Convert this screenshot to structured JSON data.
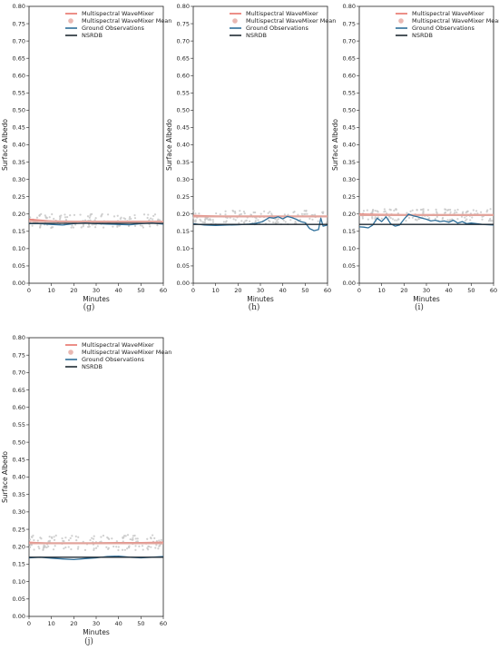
{
  "legend": [
    {
      "label": "Multispectral WaveMixer",
      "kind": "line",
      "color": "#e8736b"
    },
    {
      "label": "Multispectral WaveMixer Mean",
      "kind": "dot",
      "color": "#e9b8b2"
    },
    {
      "label": "Ground Observations",
      "kind": "line",
      "color": "#2e6f9a"
    },
    {
      "label": "NSRDB",
      "kind": "line",
      "color": "#1f2a33"
    }
  ],
  "chart_data": [
    {
      "type": "line",
      "caption": "(g)",
      "xlabel": "Minutes",
      "ylabel": "Surface Albedo",
      "xlim": [
        0,
        60
      ],
      "ylim": [
        0,
        0.8
      ],
      "xticks": [
        0,
        10,
        20,
        30,
        40,
        50,
        60
      ],
      "yticks": [
        "0.00",
        "0.05",
        "0.10",
        "0.15",
        "0.20",
        "0.25",
        "0.30",
        "0.35",
        "0.40",
        "0.45",
        "0.50",
        "0.55",
        "0.60",
        "0.65",
        "0.70",
        "0.75",
        "0.80"
      ],
      "scatter_band": [
        0.16,
        0.2
      ],
      "series": [
        {
          "name": "Multispectral WaveMixer",
          "x": [
            0,
            10,
            20,
            30,
            40,
            50,
            60
          ],
          "y": [
            0.185,
            0.18,
            0.178,
            0.177,
            0.177,
            0.177,
            0.178
          ]
        },
        {
          "name": "Multispectral WaveMixer Mean",
          "x": [
            0,
            10,
            20,
            30,
            40,
            50,
            60
          ],
          "y": [
            0.18,
            0.179,
            0.178,
            0.178,
            0.178,
            0.178,
            0.178
          ]
        },
        {
          "name": "Ground Observations",
          "x": [
            0,
            5,
            10,
            15,
            20,
            25,
            30,
            35,
            40,
            45,
            50,
            55,
            60
          ],
          "y": [
            0.172,
            0.172,
            0.17,
            0.168,
            0.172,
            0.174,
            0.172,
            0.171,
            0.17,
            0.169,
            0.172,
            0.174,
            0.171
          ]
        },
        {
          "name": "NSRDB",
          "x": [
            0,
            60
          ],
          "y": [
            0.173,
            0.173
          ]
        }
      ]
    },
    {
      "type": "line",
      "caption": "(h)",
      "xlabel": "Minutes",
      "ylabel": "Surface Albedo",
      "xlim": [
        0,
        60
      ],
      "ylim": [
        0,
        0.8
      ],
      "xticks": [
        0,
        10,
        20,
        30,
        40,
        50,
        60
      ],
      "yticks": [
        "0.00",
        "0.05",
        "0.10",
        "0.15",
        "0.20",
        "0.25",
        "0.30",
        "0.35",
        "0.40",
        "0.45",
        "0.50",
        "0.55",
        "0.60",
        "0.65",
        "0.70",
        "0.75",
        "0.80"
      ],
      "scatter_band": [
        0.17,
        0.21
      ],
      "series": [
        {
          "name": "Multispectral WaveMixer",
          "x": [
            0,
            10,
            20,
            30,
            40,
            50,
            60
          ],
          "y": [
            0.196,
            0.194,
            0.193,
            0.193,
            0.193,
            0.193,
            0.193
          ]
        },
        {
          "name": "Multispectral WaveMixer Mean",
          "x": [
            0,
            10,
            20,
            30,
            40,
            50,
            60
          ],
          "y": [
            0.193,
            0.193,
            0.193,
            0.193,
            0.193,
            0.193,
            0.193
          ]
        },
        {
          "name": "Ground Observations",
          "x": [
            0,
            5,
            10,
            15,
            20,
            25,
            28,
            31,
            34,
            36,
            38,
            40,
            42,
            44,
            46,
            48,
            50,
            52,
            54,
            56,
            57,
            58,
            60
          ],
          "y": [
            0.172,
            0.168,
            0.167,
            0.168,
            0.169,
            0.171,
            0.173,
            0.178,
            0.19,
            0.188,
            0.192,
            0.186,
            0.193,
            0.19,
            0.185,
            0.178,
            0.175,
            0.158,
            0.152,
            0.155,
            0.188,
            0.165,
            0.168
          ]
        },
        {
          "name": "NSRDB",
          "x": [
            0,
            60
          ],
          "y": [
            0.17,
            0.17
          ]
        }
      ]
    },
    {
      "type": "line",
      "caption": "(i)",
      "xlabel": "Minutes",
      "ylabel": "Surface Albedo",
      "xlim": [
        0,
        60
      ],
      "ylim": [
        0,
        0.8
      ],
      "xticks": [
        0,
        10,
        20,
        30,
        40,
        50,
        60
      ],
      "yticks": [
        "0.00",
        "0.05",
        "0.10",
        "0.15",
        "0.20",
        "0.25",
        "0.30",
        "0.35",
        "0.40",
        "0.45",
        "0.50",
        "0.55",
        "0.60",
        "0.65",
        "0.70",
        "0.75",
        "0.80"
      ],
      "scatter_band": [
        0.18,
        0.215
      ],
      "series": [
        {
          "name": "Multispectral WaveMixer",
          "x": [
            0,
            10,
            20,
            30,
            40,
            50,
            60
          ],
          "y": [
            0.2,
            0.199,
            0.198,
            0.198,
            0.198,
            0.198,
            0.198
          ]
        },
        {
          "name": "Multispectral WaveMixer Mean",
          "x": [
            0,
            10,
            20,
            30,
            40,
            50,
            60
          ],
          "y": [
            0.197,
            0.197,
            0.197,
            0.197,
            0.197,
            0.197,
            0.197
          ]
        },
        {
          "name": "Ground Observations",
          "x": [
            0,
            2,
            4,
            6,
            8,
            10,
            12,
            14,
            16,
            18,
            20,
            22,
            24,
            26,
            28,
            30,
            32,
            34,
            36,
            38,
            40,
            42,
            44,
            46,
            48,
            50,
            55,
            60
          ],
          "y": [
            0.163,
            0.162,
            0.16,
            0.168,
            0.188,
            0.178,
            0.192,
            0.172,
            0.165,
            0.168,
            0.185,
            0.2,
            0.195,
            0.192,
            0.188,
            0.185,
            0.18,
            0.182,
            0.178,
            0.18,
            0.176,
            0.182,
            0.174,
            0.178,
            0.172,
            0.174,
            0.17,
            0.168
          ]
        },
        {
          "name": "NSRDB",
          "x": [
            0,
            60
          ],
          "y": [
            0.17,
            0.17
          ]
        }
      ]
    },
    {
      "type": "line",
      "caption": "(j)",
      "xlabel": "Minutes",
      "ylabel": "Surface Albedo",
      "xlim": [
        0,
        60
      ],
      "ylim": [
        0,
        0.8
      ],
      "xticks": [
        0,
        10,
        20,
        30,
        40,
        50,
        60
      ],
      "yticks": [
        "0.00",
        "0.05",
        "0.10",
        "0.15",
        "0.20",
        "0.25",
        "0.30",
        "0.35",
        "0.40",
        "0.45",
        "0.50",
        "0.55",
        "0.60",
        "0.65",
        "0.70",
        "0.75",
        "0.80"
      ],
      "scatter_band": [
        0.19,
        0.235
      ],
      "series": [
        {
          "name": "Multispectral WaveMixer",
          "x": [
            0,
            10,
            20,
            30,
            40,
            50,
            60
          ],
          "y": [
            0.213,
            0.21,
            0.21,
            0.211,
            0.212,
            0.212,
            0.213
          ]
        },
        {
          "name": "Multispectral WaveMixer Mean",
          "x": [
            0,
            10,
            20,
            30,
            40,
            50,
            60
          ],
          "y": [
            0.21,
            0.21,
            0.21,
            0.21,
            0.21,
            0.21,
            0.21
          ]
        },
        {
          "name": "Ground Observations",
          "x": [
            0,
            5,
            10,
            15,
            20,
            25,
            30,
            35,
            40,
            45,
            50,
            55,
            60
          ],
          "y": [
            0.168,
            0.17,
            0.167,
            0.165,
            0.163,
            0.166,
            0.168,
            0.172,
            0.173,
            0.17,
            0.168,
            0.17,
            0.172
          ]
        },
        {
          "name": "NSRDB",
          "x": [
            0,
            60
          ],
          "y": [
            0.17,
            0.17
          ]
        }
      ]
    }
  ]
}
